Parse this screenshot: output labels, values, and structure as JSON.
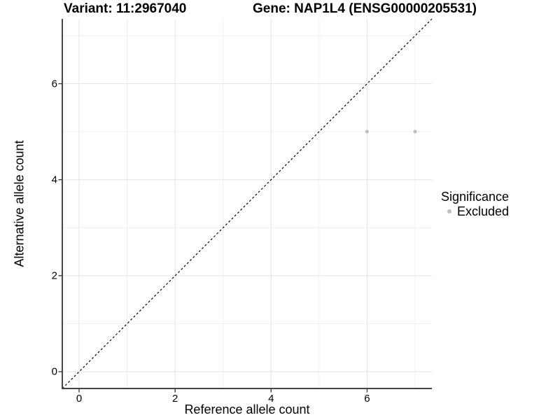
{
  "chart_data": {
    "type": "scatter",
    "titles": {
      "left": "Variant: 11:2967040",
      "right": "Gene: NAP1L4 (ENSG00000205531)"
    },
    "xlabel": "Reference allele count",
    "ylabel": "Alternative allele count",
    "xlim": [
      -0.35,
      7.35
    ],
    "ylim": [
      -0.35,
      7.35
    ],
    "x_ticks": [
      0,
      2,
      4,
      6
    ],
    "y_ticks": [
      0,
      2,
      4,
      6
    ],
    "grid": {
      "interval": 1,
      "major_multiple": 2,
      "on": true
    },
    "identity_line": {
      "slope": 1,
      "intercept": 0,
      "style": "dashed",
      "color": "#000000"
    },
    "series": [
      {
        "name": "Excluded",
        "color": "#bebebe",
        "points": [
          [
            6,
            5
          ],
          [
            7,
            5
          ]
        ]
      }
    ],
    "legend": {
      "title": "Significance",
      "position": "right",
      "items": [
        {
          "label": "Excluded",
          "color": "#bebebe",
          "marker": "circle"
        }
      ]
    },
    "style": {
      "grid_major_color": "#e3e3e3",
      "grid_minor_color": "#efefef",
      "axis_color": "#454545",
      "tick_color": "#333333",
      "point_radius": 2.5
    }
  }
}
